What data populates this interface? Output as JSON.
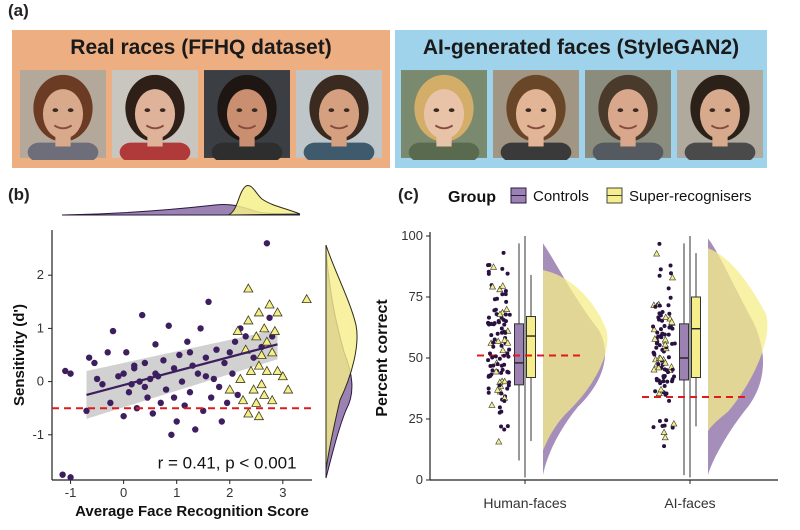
{
  "panels": {
    "a": "(a)",
    "b": "(b)",
    "c": "(c)"
  },
  "banners": {
    "real": {
      "title": "Real races (FFHQ dataset)",
      "color": "#edae82",
      "faces": [
        {
          "name": "real-face-1",
          "skin": "#d8a98a",
          "hair": "#6b3b24",
          "bg": "#b4a89b",
          "shirt": "#6e6e7a"
        },
        {
          "name": "real-face-2",
          "skin": "#deb39a",
          "hair": "#2e1f18",
          "bg": "#c9c6c0",
          "shirt": "#b03a3a"
        },
        {
          "name": "real-face-3",
          "skin": "#c98f70",
          "hair": "#1e1612",
          "bg": "#3b3f44",
          "shirt": "#2e2e2e"
        },
        {
          "name": "real-face-4",
          "skin": "#d4a07f",
          "hair": "#3a2a20",
          "bg": "#bfc6c9",
          "shirt": "#3f5a6c"
        }
      ]
    },
    "ai": {
      "title": "AI-generated faces (StyleGAN2)",
      "color": "#9fd3ec",
      "faces": [
        {
          "name": "ai-face-1",
          "skin": "#e9c3a7",
          "hair": "#d4ad68",
          "bg": "#7a8a6e",
          "shirt": "#5a6a4e"
        },
        {
          "name": "ai-face-2",
          "skin": "#e2b596",
          "hair": "#6a4628",
          "bg": "#a19683",
          "shirt": "#3a3a3a"
        },
        {
          "name": "ai-face-3",
          "skin": "#d9a88c",
          "hair": "#4a3a2c",
          "bg": "#8a8c7e",
          "shirt": "#555a60"
        },
        {
          "name": "ai-face-4",
          "skin": "#d7a98d",
          "hair": "#2b2119",
          "bg": "#b0a99d",
          "shirt": "#4a4a4a"
        }
      ]
    }
  },
  "colors": {
    "controls": "#3d1e5e",
    "controls_light": "#a083b6",
    "super": "#f5ee8a",
    "super_edge": "#b8a800",
    "refline": "#e01b1b"
  },
  "chart_data": [
    {
      "type": "scatter",
      "xlabel": "Average Face Recognition Score",
      "ylabel": "Sensitivity (d')",
      "xlim": [
        -1.35,
        3.55
      ],
      "ylim": [
        -1.85,
        2.85
      ],
      "xticks": [
        -1,
        0,
        1,
        2,
        3
      ],
      "yticks": [
        -1,
        0,
        1,
        2
      ],
      "annotation": "r = 0.41, p < 0.001",
      "reference_line_y": -0.5,
      "regression": {
        "x": [
          -0.7,
          2.9
        ],
        "y": [
          -0.25,
          0.7
        ]
      },
      "series": [
        {
          "name": "Controls",
          "marker": "circle",
          "points": [
            [
              -1.1,
              0.2
            ],
            [
              -1.15,
              -1.75
            ],
            [
              -1.0,
              -1.8
            ],
            [
              -1.0,
              0.15
            ],
            [
              -0.7,
              -0.55
            ],
            [
              -0.65,
              0.45
            ],
            [
              -0.55,
              0.35
            ],
            [
              -0.4,
              -0.05
            ],
            [
              -0.3,
              0.55
            ],
            [
              -0.25,
              -0.4
            ],
            [
              -0.2,
              0.95
            ],
            [
              -0.1,
              0.1
            ],
            [
              0.0,
              -0.65
            ],
            [
              0.05,
              0.55
            ],
            [
              0.1,
              -0.2
            ],
            [
              0.15,
              -0.05
            ],
            [
              0.2,
              0.3
            ],
            [
              0.25,
              -0.5
            ],
            [
              0.3,
              0.0
            ],
            [
              0.35,
              1.25
            ],
            [
              0.4,
              0.35
            ],
            [
              0.45,
              -0.3
            ],
            [
              0.5,
              0.05
            ],
            [
              0.55,
              -0.6
            ],
            [
              0.6,
              0.7
            ],
            [
              0.65,
              0.1
            ],
            [
              0.7,
              -0.4
            ],
            [
              0.75,
              0.4
            ],
            [
              0.8,
              -0.15
            ],
            [
              0.85,
              1.05
            ],
            [
              0.9,
              -1.0
            ],
            [
              0.95,
              0.25
            ],
            [
              1.0,
              -0.75
            ],
            [
              1.05,
              0.5
            ],
            [
              1.1,
              0.0
            ],
            [
              1.15,
              -0.45
            ],
            [
              1.2,
              0.75
            ],
            [
              1.25,
              -0.2
            ],
            [
              1.3,
              0.3
            ],
            [
              1.35,
              -0.9
            ],
            [
              1.4,
              0.15
            ],
            [
              1.45,
              1.0
            ],
            [
              1.5,
              -0.55
            ],
            [
              1.55,
              0.45
            ],
            [
              1.6,
              1.5
            ],
            [
              1.65,
              -0.3
            ],
            [
              1.7,
              0.05
            ],
            [
              1.75,
              0.6
            ],
            [
              1.8,
              -0.1
            ],
            [
              1.85,
              -0.75
            ],
            [
              1.9,
              0.35
            ],
            [
              1.95,
              -0.4
            ],
            [
              2.0,
              0.55
            ],
            [
              2.05,
              0.15
            ],
            [
              2.1,
              0.75
            ],
            [
              2.15,
              -0.25
            ],
            [
              2.2,
              1.0
            ],
            [
              2.3,
              0.85
            ],
            [
              2.45,
              0.45
            ],
            [
              2.6,
              0.65
            ],
            [
              2.7,
              2.6
            ],
            [
              2.75,
              1.2
            ],
            [
              2.8,
              0.85
            ],
            [
              0.2,
              0.25
            ],
            [
              0.6,
              0.15
            ],
            [
              1.25,
              0.55
            ],
            [
              0.4,
              -0.1
            ],
            [
              0.95,
              -0.3
            ],
            [
              1.55,
              0.1
            ],
            [
              -0.5,
              0.05
            ],
            [
              0.0,
              0.15
            ]
          ]
        },
        {
          "name": "Super-recognisers",
          "marker": "triangle",
          "points": [
            [
              2.0,
              -0.15
            ],
            [
              2.15,
              0.95
            ],
            [
              2.2,
              0.05
            ],
            [
              2.25,
              -0.35
            ],
            [
              2.3,
              0.6
            ],
            [
              2.35,
              -0.6
            ],
            [
              2.35,
              1.15
            ],
            [
              2.4,
              0.2
            ],
            [
              2.45,
              -0.15
            ],
            [
              2.5,
              0.85
            ],
            [
              2.5,
              -0.4
            ],
            [
              2.55,
              0.3
            ],
            [
              2.55,
              1.3
            ],
            [
              2.6,
              -0.05
            ],
            [
              2.6,
              0.5
            ],
            [
              2.65,
              1.0
            ],
            [
              2.65,
              -0.25
            ],
            [
              2.7,
              0.2
            ],
            [
              2.7,
              0.75
            ],
            [
              2.75,
              1.45
            ],
            [
              2.8,
              0.55
            ],
            [
              2.8,
              -0.35
            ],
            [
              2.85,
              0.95
            ],
            [
              2.9,
              0.2
            ],
            [
              2.9,
              1.3
            ],
            [
              3.0,
              0.1
            ],
            [
              3.1,
              -0.15
            ],
            [
              3.45,
              1.55
            ],
            [
              2.35,
              1.75
            ],
            [
              2.55,
              -0.65
            ]
          ]
        }
      ]
    },
    {
      "type": "raincloud",
      "ylabel": "Percent correct",
      "categories": [
        "Human-faces",
        "AI-faces"
      ],
      "ylim": [
        0,
        100
      ],
      "yticks": [
        0,
        25,
        50,
        75,
        100
      ],
      "legend": {
        "title": "Group",
        "items": [
          "Controls",
          "Super-recognisers"
        ],
        "position": "top"
      },
      "chance_lines": {
        "Human-faces": 51,
        "AI-faces": 34
      },
      "boxes": {
        "Human-faces": {
          "Controls": {
            "q1": 39,
            "median": 48,
            "q3": 64,
            "whisker_low": 8,
            "whisker_high": 97
          },
          "Super-recognisers": {
            "q1": 42,
            "median": 59,
            "q3": 67,
            "whisker_low": 16,
            "whisker_high": 84
          }
        },
        "AI-faces": {
          "Controls": {
            "q1": 41,
            "median": 50,
            "q3": 64,
            "whisker_low": 2,
            "whisker_high": 97
          },
          "Super-recognisers": {
            "q1": 42,
            "median": 62,
            "q3": 75,
            "whisker_low": 22,
            "whisker_high": 93
          }
        }
      }
    }
  ]
}
